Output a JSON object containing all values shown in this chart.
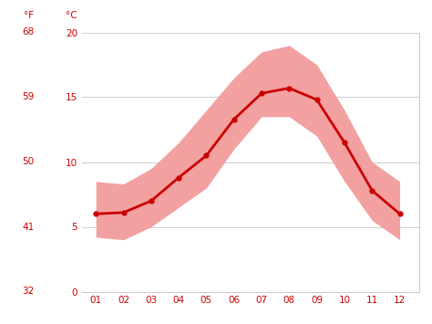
{
  "months": [
    1,
    2,
    3,
    4,
    5,
    6,
    7,
    8,
    9,
    10,
    11,
    12
  ],
  "month_labels": [
    "01",
    "02",
    "03",
    "04",
    "05",
    "06",
    "07",
    "08",
    "09",
    "10",
    "11",
    "12"
  ],
  "avg_temp_c": [
    6.0,
    6.1,
    7.0,
    8.8,
    10.5,
    13.3,
    15.3,
    15.7,
    14.8,
    11.5,
    7.8,
    6.0
  ],
  "max_temp_c": [
    8.5,
    8.3,
    9.5,
    11.5,
    14.0,
    16.5,
    18.5,
    19.0,
    17.5,
    14.0,
    10.0,
    8.5
  ],
  "min_temp_c": [
    4.2,
    4.0,
    5.0,
    6.5,
    8.0,
    11.0,
    13.5,
    13.5,
    12.0,
    8.5,
    5.5,
    4.0
  ],
  "line_color": "#cc0000",
  "fill_color": "#f2a0a0",
  "grid_color": "#cccccc",
  "label_color": "#cc0000",
  "background_color": "#ffffff",
  "ylim_c": [
    0,
    20
  ],
  "yticks_c": [
    0,
    5,
    10,
    15,
    20
  ],
  "yticks_f": [
    32,
    41,
    50,
    59,
    68
  ],
  "figsize": [
    4.74,
    3.55
  ],
  "dpi": 100
}
